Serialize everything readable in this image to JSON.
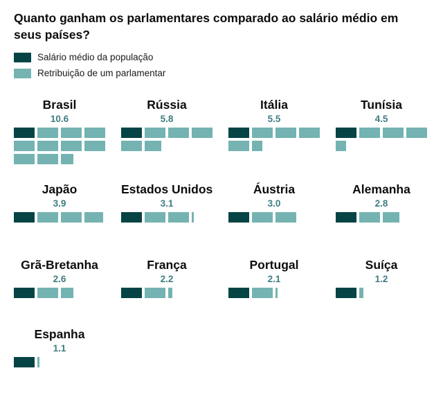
{
  "title": "Quanto ganham os parlamentares comparado ao salário médio em seus países?",
  "legend": {
    "items": [
      {
        "id": "average-salary",
        "label": "Salário médio da população",
        "color": "#064345"
      },
      {
        "id": "parliamentarian-pay",
        "label": "Retribuição de um parlamentar",
        "color": "#74b3b1"
      }
    ]
  },
  "chart_data": {
    "type": "waffle",
    "title": "Quanto ganham os parlamentares comparado ao salário médio em seus países?",
    "legend": [
      "Salário médio da população",
      "Retribuição de um parlamentar"
    ],
    "blocks_per_row": 4,
    "columns_per_group_row": 4,
    "unit": "múltiplos do salário médio (1 bloco = 1 salário médio; bloco escuro = salário médio da população)",
    "colors": {
      "average_salary": "#064345",
      "parliamentarian_pay": "#74b3b1",
      "value_label": "#3f7c81"
    },
    "countries": [
      {
        "name": "Brasil",
        "value": 10.6,
        "value_label": "10.6"
      },
      {
        "name": "Rússia",
        "value": 5.8,
        "value_label": "5.8"
      },
      {
        "name": "Itália",
        "value": 5.5,
        "value_label": "5.5"
      },
      {
        "name": "Tunísia",
        "value": 4.5,
        "value_label": "4.5"
      },
      {
        "name": "Japão",
        "value": 3.9,
        "value_label": "3.9"
      },
      {
        "name": "Estados Unidos",
        "value": 3.1,
        "value_label": "3.1"
      },
      {
        "name": "Áustria",
        "value": 3.0,
        "value_label": "3.0"
      },
      {
        "name": "Alemanha",
        "value": 2.8,
        "value_label": "2.8"
      },
      {
        "name": "Grã-Bretanha",
        "value": 2.6,
        "value_label": "2.6"
      },
      {
        "name": "França",
        "value": 2.2,
        "value_label": "2.2"
      },
      {
        "name": "Portugal",
        "value": 2.1,
        "value_label": "2.1"
      },
      {
        "name": "Suíça",
        "value": 1.2,
        "value_label": "1.2"
      },
      {
        "name": "Espanha",
        "value": 1.1,
        "value_label": "1.1"
      }
    ]
  }
}
